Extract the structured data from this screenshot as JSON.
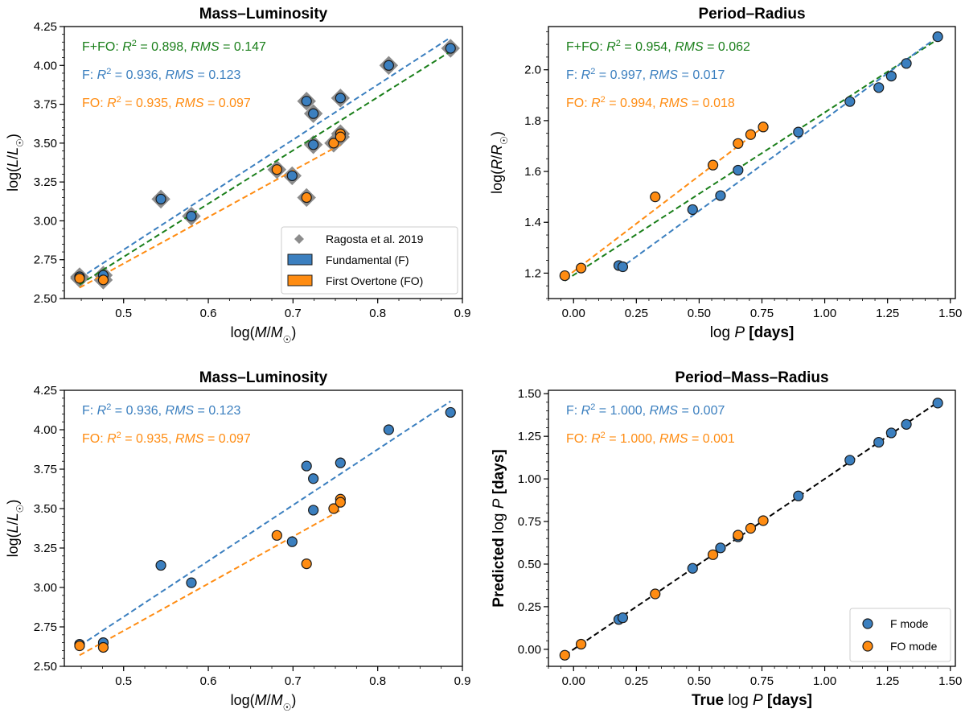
{
  "colors": {
    "F": "#3b7fbf",
    "FO": "#ff8c12",
    "all": "#1a7f1a",
    "ref": "#8c8c8c",
    "identity": "#000000"
  },
  "chart_data": [
    {
      "type": "scatter",
      "title": "Mass–Luminosity",
      "xlabel": "log(M/M☉)",
      "ylabel": "log(L/L☉)",
      "xlim": [
        0.43,
        0.9
      ],
      "ylim": [
        2.5,
        4.25
      ],
      "xticks": [
        "0.5",
        "0.6",
        "0.7",
        "0.8",
        "0.9"
      ],
      "yticks": [
        "2.50",
        "2.75",
        "3.00",
        "3.25",
        "3.50",
        "3.75",
        "4.00",
        "4.25"
      ],
      "annotations": [
        {
          "label": "F+FO:",
          "r2": "0.898",
          "rms": "0.147",
          "series": "all"
        },
        {
          "label": "F:",
          "r2": "0.936",
          "rms": "0.123",
          "series": "F"
        },
        {
          "label": "FO:",
          "r2": "0.935",
          "rms": "0.097",
          "series": "FO"
        }
      ],
      "legend": {
        "position": "lower right",
        "entries": [
          "Ragosta et al. 2019",
          "Fundamental (F)",
          "First Overtone (FO)"
        ]
      },
      "reference": {
        "name": "Ragosta et al. 2019",
        "points": [
          [
            0.448,
            2.64
          ],
          [
            0.476,
            2.65
          ],
          [
            0.476,
            2.62
          ],
          [
            0.544,
            3.14
          ],
          [
            0.58,
            3.03
          ],
          [
            0.699,
            3.29
          ],
          [
            0.716,
            3.77
          ],
          [
            0.724,
            3.69
          ],
          [
            0.724,
            3.49
          ],
          [
            0.756,
            3.79
          ],
          [
            0.813,
            4.0
          ],
          [
            0.886,
            4.11
          ],
          [
            0.448,
            2.63
          ],
          [
            0.476,
            2.62
          ],
          [
            0.681,
            3.33
          ],
          [
            0.716,
            3.15
          ],
          [
            0.748,
            3.5
          ],
          [
            0.756,
            3.56
          ],
          [
            0.756,
            3.54
          ]
        ]
      },
      "series": [
        {
          "name": "Fundamental (F)",
          "key": "F",
          "points": [
            [
              0.448,
              2.64
            ],
            [
              0.476,
              2.65
            ],
            [
              0.544,
              3.14
            ],
            [
              0.58,
              3.03
            ],
            [
              0.699,
              3.29
            ],
            [
              0.716,
              3.77
            ],
            [
              0.724,
              3.69
            ],
            [
              0.724,
              3.49
            ],
            [
              0.756,
              3.79
            ],
            [
              0.813,
              4.0
            ],
            [
              0.886,
              4.11
            ]
          ]
        },
        {
          "name": "First Overtone (FO)",
          "key": "FO",
          "points": [
            [
              0.448,
              2.63
            ],
            [
              0.476,
              2.62
            ],
            [
              0.681,
              3.33
            ],
            [
              0.716,
              3.15
            ],
            [
              0.748,
              3.5
            ],
            [
              0.756,
              3.56
            ],
            [
              0.756,
              3.54
            ]
          ]
        }
      ],
      "fits": [
        {
          "key": "F",
          "x": [
            0.448,
            0.886
          ],
          "y": [
            2.63,
            4.18
          ]
        },
        {
          "key": "all",
          "x": [
            0.448,
            0.886
          ],
          "y": [
            2.59,
            4.09
          ]
        },
        {
          "key": "FO",
          "x": [
            0.448,
            0.756
          ],
          "y": [
            2.57,
            3.49
          ]
        }
      ]
    },
    {
      "type": "scatter",
      "title": "Period–Radius",
      "xlabel": "log P",
      "xlabel_unit": "[days]",
      "ylabel": "log(R/R☉)",
      "xlim": [
        -0.1,
        1.52
      ],
      "ylim": [
        1.1,
        2.17
      ],
      "xticks": [
        "0.00",
        "0.25",
        "0.50",
        "0.75",
        "1.00",
        "1.25",
        "1.50"
      ],
      "yticks": [
        "1.2",
        "1.4",
        "1.6",
        "1.8",
        "2.0"
      ],
      "annotations": [
        {
          "label": "F+FO:",
          "r2": "0.954",
          "rms": "0.062",
          "series": "all"
        },
        {
          "label": "F:",
          "r2": "0.997",
          "rms": "0.017",
          "series": "F"
        },
        {
          "label": "FO:",
          "r2": "0.994",
          "rms": "0.018",
          "series": "FO"
        }
      ],
      "series": [
        {
          "name": "F",
          "key": "F",
          "points": [
            [
              0.18,
              1.23
            ],
            [
              0.196,
              1.225
            ],
            [
              0.474,
              1.45
            ],
            [
              0.585,
              1.505
            ],
            [
              0.655,
              1.605
            ],
            [
              0.895,
              1.755
            ],
            [
              1.1,
              1.875
            ],
            [
              1.215,
              1.93
            ],
            [
              1.265,
              1.975
            ],
            [
              1.325,
              2.025
            ],
            [
              1.45,
              2.13
            ]
          ]
        },
        {
          "name": "FO",
          "key": "FO",
          "points": [
            [
              -0.035,
              1.19
            ],
            [
              0.03,
              1.22
            ],
            [
              0.325,
              1.5
            ],
            [
              0.555,
              1.625
            ],
            [
              0.655,
              1.71
            ],
            [
              0.705,
              1.745
            ],
            [
              0.755,
              1.775
            ]
          ]
        }
      ],
      "fits": [
        {
          "key": "all",
          "x": [
            -0.035,
            1.45
          ],
          "y": [
            1.17,
            2.12
          ]
        },
        {
          "key": "FO",
          "x": [
            -0.035,
            0.755
          ],
          "y": [
            1.18,
            1.775
          ]
        },
        {
          "key": "F",
          "x": [
            0.18,
            1.45
          ],
          "y": [
            1.215,
            2.13
          ]
        }
      ]
    },
    {
      "type": "scatter",
      "title": "Mass–Luminosity",
      "xlabel": "log(M/M☉)",
      "ylabel": "log(L/L☉)",
      "xlim": [
        0.43,
        0.9
      ],
      "ylim": [
        2.5,
        4.25
      ],
      "xticks": [
        "0.5",
        "0.6",
        "0.7",
        "0.8",
        "0.9"
      ],
      "yticks": [
        "2.50",
        "2.75",
        "3.00",
        "3.25",
        "3.50",
        "3.75",
        "4.00",
        "4.25"
      ],
      "annotations": [
        {
          "label": "F:",
          "r2": "0.936",
          "rms": "0.123",
          "series": "F"
        },
        {
          "label": "FO:",
          "r2": "0.935",
          "rms": "0.097",
          "series": "FO"
        }
      ],
      "series": [
        {
          "name": "F",
          "key": "F",
          "points": [
            [
              0.448,
              2.64
            ],
            [
              0.476,
              2.65
            ],
            [
              0.544,
              3.14
            ],
            [
              0.58,
              3.03
            ],
            [
              0.699,
              3.29
            ],
            [
              0.716,
              3.77
            ],
            [
              0.724,
              3.69
            ],
            [
              0.724,
              3.49
            ],
            [
              0.756,
              3.79
            ],
            [
              0.813,
              4.0
            ],
            [
              0.886,
              4.11
            ]
          ]
        },
        {
          "name": "FO",
          "key": "FO",
          "points": [
            [
              0.448,
              2.63
            ],
            [
              0.476,
              2.62
            ],
            [
              0.681,
              3.33
            ],
            [
              0.716,
              3.15
            ],
            [
              0.748,
              3.5
            ],
            [
              0.756,
              3.56
            ],
            [
              0.756,
              3.54
            ]
          ]
        }
      ],
      "fits": [
        {
          "key": "F",
          "x": [
            0.448,
            0.886
          ],
          "y": [
            2.63,
            4.18
          ]
        },
        {
          "key": "FO",
          "x": [
            0.448,
            0.756
          ],
          "y": [
            2.57,
            3.49
          ]
        }
      ]
    },
    {
      "type": "scatter",
      "title": "Period–Mass–Radius",
      "xlabel": "True log P",
      "xlabel_unit": "[days]",
      "ylabel": "Predicted log P",
      "ylabel_unit": "[days]",
      "xlim": [
        -0.1,
        1.52
      ],
      "ylim": [
        -0.1,
        1.52
      ],
      "xticks": [
        "0.00",
        "0.25",
        "0.50",
        "0.75",
        "1.00",
        "1.25",
        "1.50"
      ],
      "yticks": [
        "0.00",
        "0.25",
        "0.50",
        "0.75",
        "1.00",
        "1.25",
        "1.50"
      ],
      "annotations": [
        {
          "label": "F:",
          "r2": "1.000",
          "rms": "0.007",
          "series": "F"
        },
        {
          "label": "FO:",
          "r2": "1.000",
          "rms": "0.001",
          "series": "FO"
        }
      ],
      "legend": {
        "position": "lower right",
        "entries": [
          "F mode",
          "FO mode"
        ]
      },
      "series": [
        {
          "name": "F mode",
          "key": "F",
          "points": [
            [
              0.18,
              0.175
            ],
            [
              0.196,
              0.185
            ],
            [
              0.474,
              0.475
            ],
            [
              0.585,
              0.595
            ],
            [
              0.655,
              0.66
            ],
            [
              0.895,
              0.9
            ],
            [
              1.1,
              1.11
            ],
            [
              1.215,
              1.215
            ],
            [
              1.265,
              1.27
            ],
            [
              1.325,
              1.32
            ],
            [
              1.45,
              1.445
            ]
          ]
        },
        {
          "name": "FO mode",
          "key": "FO",
          "points": [
            [
              -0.035,
              -0.035
            ],
            [
              0.03,
              0.03
            ],
            [
              0.325,
              0.325
            ],
            [
              0.555,
              0.555
            ],
            [
              0.655,
              0.67
            ],
            [
              0.705,
              0.71
            ],
            [
              0.755,
              0.755
            ]
          ]
        }
      ],
      "fits": [
        {
          "key": "identity",
          "x": [
            -0.035,
            1.45
          ],
          "y": [
            -0.035,
            1.45
          ]
        }
      ]
    }
  ]
}
